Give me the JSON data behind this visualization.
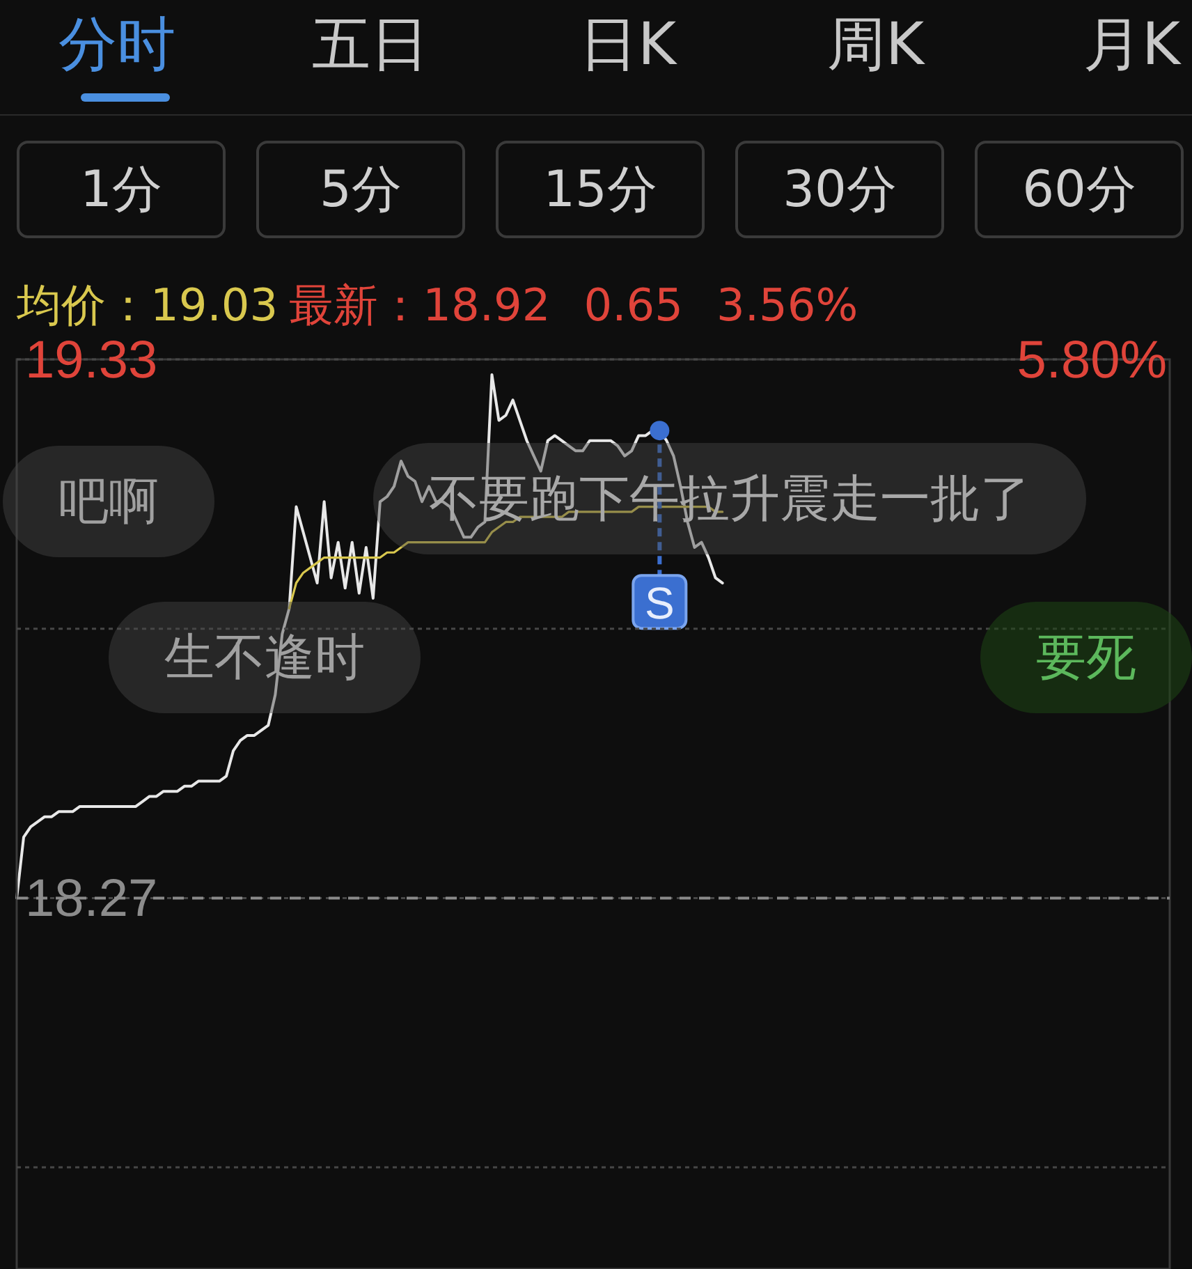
{
  "chart_data": {
    "type": "line",
    "annotations": [
      "分时",
      "五日",
      "日K",
      "周K",
      "月K",
      "1分",
      "5分",
      "15分",
      "30分",
      "60分",
      "均价：19.03",
      "最新：18.92",
      "0.65",
      "3.56%",
      "吧啊",
      "不要跑下午拉升震走一批了",
      "生不逢时",
      "要死",
      {
        "text": "S",
        "y": 19.19
      },
      "5.80%"
    ],
    "categories": [
      null,
      null,
      null,
      null,
      null,
      null,
      null,
      null,
      null,
      null,
      null,
      null,
      null,
      null,
      null,
      null,
      null,
      null,
      null,
      null,
      null,
      null,
      null,
      null,
      null,
      null,
      null,
      null,
      null,
      null,
      null,
      null,
      null,
      null,
      null,
      null,
      null,
      null,
      null,
      null,
      null,
      null,
      null,
      null,
      null,
      null,
      null,
      null,
      null,
      null,
      null,
      null,
      null,
      null,
      null,
      null,
      null,
      null,
      null,
      null,
      null,
      null,
      null,
      null,
      null,
      null,
      null,
      null,
      null,
      null,
      null,
      null,
      null,
      null,
      null,
      null,
      null,
      null,
      null,
      null,
      null,
      null,
      null,
      null,
      null,
      null,
      null,
      null,
      null,
      null,
      null,
      null,
      null,
      null,
      null,
      null,
      null,
      null,
      null,
      null,
      null,
      null,
      null,
      null,
      null,
      null,
      null,
      null,
      null,
      null,
      null,
      null,
      null,
      null,
      null,
      null,
      null,
      null,
      null,
      null,
      null,
      null,
      null,
      null,
      null,
      null,
      null,
      null,
      null,
      null,
      null,
      null,
      null,
      null,
      null,
      null,
      null,
      null,
      null,
      null,
      null,
      null,
      null,
      null,
      null,
      null,
      null,
      null,
      null,
      null,
      null,
      null,
      null,
      null,
      null,
      null,
      null,
      null,
      null,
      null,
      null,
      null,
      null,
      null,
      null,
      null
    ],
    "series": [
      {
        "color": "#e8e8e8",
        "values": [
          18.27,
          18.39,
          18.41,
          18.42,
          18.43,
          18.43,
          18.44,
          18.44,
          18.44,
          18.45,
          18.45,
          18.45,
          18.45,
          18.45,
          18.45,
          18.45,
          18.45,
          18.45,
          18.46,
          18.47,
          18.47,
          18.48,
          18.48,
          18.48,
          18.49,
          18.49,
          18.5,
          18.5,
          18.5,
          18.5,
          18.51,
          18.56,
          18.58,
          18.59,
          18.59,
          18.6,
          18.61,
          18.67,
          18.79,
          18.84,
          19.04,
          18.99,
          18.94,
          18.89,
          19.05,
          18.9,
          18.97,
          18.88,
          18.97,
          18.87,
          18.96,
          18.86,
          19.05,
          19.06,
          19.08,
          19.13,
          19.1,
          19.09,
          19.05,
          19.08,
          19.05,
          19.05,
          19.04,
          19.01,
          18.98,
          18.98,
          19.0,
          19.01,
          19.3,
          19.21,
          19.22,
          19.25,
          19.21,
          19.17,
          19.14,
          19.11,
          19.17,
          19.18,
          19.17,
          19.16,
          19.15,
          19.15,
          19.17,
          19.17,
          19.17,
          19.17,
          19.16,
          19.14,
          19.15,
          19.18,
          19.18,
          19.19,
          19.19,
          19.17,
          19.14,
          19.08,
          19.01,
          18.96,
          18.97,
          18.94,
          18.9,
          18.89,
          null,
          null,
          null,
          null,
          null,
          null,
          null,
          null,
          null,
          null,
          null,
          null,
          null,
          null,
          null,
          null,
          null,
          null,
          null,
          null,
          null,
          null,
          null,
          null,
          null,
          null,
          null,
          null,
          null,
          null,
          null,
          null,
          null,
          null,
          null,
          null,
          null,
          null,
          null,
          null,
          null,
          null,
          null,
          null,
          null,
          null,
          null,
          null,
          null,
          null,
          null,
          null,
          null,
          null,
          null,
          null,
          null,
          null,
          null,
          null,
          null,
          null,
          null,
          null
        ]
      },
      {
        "color": "#d9c84e",
        "values": [
          null,
          null,
          null,
          null,
          null,
          null,
          null,
          null,
          null,
          null,
          null,
          null,
          null,
          null,
          null,
          null,
          null,
          null,
          null,
          null,
          null,
          null,
          null,
          null,
          null,
          null,
          null,
          null,
          null,
          null,
          null,
          null,
          null,
          null,
          null,
          null,
          null,
          null,
          null,
          18.84,
          18.89,
          18.91,
          18.92,
          18.93,
          18.94,
          18.94,
          18.94,
          18.94,
          18.94,
          18.94,
          18.94,
          18.94,
          18.94,
          18.95,
          18.95,
          18.96,
          18.97,
          18.97,
          18.97,
          18.97,
          18.97,
          18.97,
          18.97,
          18.97,
          18.97,
          18.97,
          18.97,
          18.97,
          18.99,
          19.0,
          19.01,
          19.01,
          19.02,
          19.02,
          19.02,
          19.02,
          19.02,
          19.02,
          19.02,
          19.03,
          19.03,
          19.03,
          19.03,
          19.03,
          19.03,
          19.03,
          19.03,
          19.03,
          19.03,
          19.04,
          19.04,
          19.04,
          19.04,
          19.04,
          19.04,
          19.04,
          19.04,
          19.04,
          19.04,
          19.04,
          19.03,
          19.03,
          null,
          null,
          null,
          null,
          null,
          null,
          null,
          null,
          null,
          null,
          null,
          null,
          null,
          null,
          null,
          null,
          null,
          null,
          null,
          null,
          null,
          null,
          null,
          null,
          null,
          null,
          null,
          null,
          null,
          null,
          null,
          null,
          null,
          null,
          null,
          null,
          null,
          null,
          null,
          null,
          null,
          null,
          null,
          null,
          null,
          null,
          null,
          null,
          null,
          null,
          null,
          null,
          null,
          null,
          null,
          null,
          null,
          null,
          null,
          null,
          null,
          null,
          null,
          null
        ]
      }
    ],
    "ylim": [
      17.54,
      19.33
    ],
    "yticks": [
      {
        "value": 17.74,
        "label": null
      },
      18.27,
      {
        "value": 18.8,
        "label": null
      },
      19.33
    ],
    "ref_lines": [
      {
        "axis": "y",
        "value": 18.27,
        "color": "#8a8a8a",
        "line_style": "dashed"
      }
    ],
    "grid": "y",
    "marker": "none",
    "line_style": "solid"
  }
}
